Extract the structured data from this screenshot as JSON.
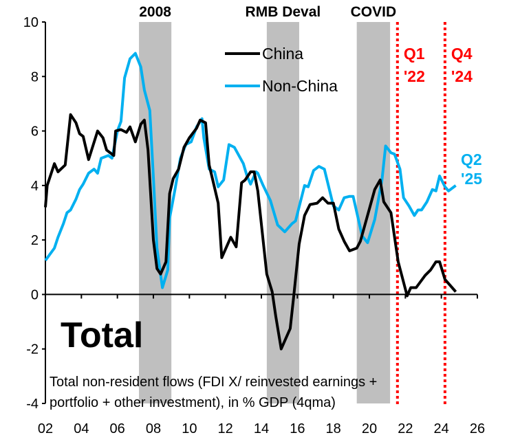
{
  "chart_data": {
    "type": "line",
    "title": "Total",
    "note_lines": [
      "Total non-resident flows (FDI X/ reinvested earnings +",
      "portfolio + other investment), in % GDP (4qma)"
    ],
    "xlabel": "",
    "ylabel": "",
    "xlim": [
      2002,
      2026
    ],
    "ylim": [
      -4,
      10
    ],
    "x_ticks": [
      2002,
      2004,
      2006,
      2008,
      2010,
      2012,
      2014,
      2016,
      2018,
      2020,
      2022,
      2024,
      2026
    ],
    "x_tick_labels": [
      "02",
      "04",
      "06",
      "08",
      "10",
      "12",
      "14",
      "16",
      "18",
      "20",
      "22",
      "24",
      "26"
    ],
    "y_ticks": [
      -4,
      -2,
      0,
      2,
      4,
      6,
      8,
      10
    ],
    "y_tick_labels": [
      "-4",
      "-2",
      "0",
      "2",
      "4",
      "6",
      "8",
      "10"
    ],
    "grid": false,
    "legend": {
      "placement": "top-center"
    },
    "shaded_periods": [
      {
        "label": "2008",
        "start": 2007.2,
        "end": 2009.0
      },
      {
        "label": "RMB Deval",
        "start": 2014.3,
        "end": 2016.1
      },
      {
        "label": "COVID",
        "start": 2019.3,
        "end": 2021.15
      }
    ],
    "markers": [
      {
        "label_line1": "Q1",
        "label_line2": "'22",
        "x": 2021.56
      },
      {
        "label_line1": "Q4",
        "label_line2": "'24",
        "x": 2024.2
      }
    ],
    "end_label": {
      "line1": "Q2",
      "line2": "'25"
    },
    "colors": {
      "china": "#000000",
      "non_china": "#00B0F0",
      "shade": "#BFBFBF",
      "marker": "#FF0000"
    },
    "series": [
      {
        "name": "China",
        "points": [
          [
            2002.0,
            3.2
          ],
          [
            2002.1,
            4.0
          ],
          [
            2002.5,
            4.8
          ],
          [
            2002.7,
            4.5
          ],
          [
            2003.1,
            4.75
          ],
          [
            2003.4,
            6.6
          ],
          [
            2003.7,
            6.3
          ],
          [
            2003.9,
            5.9
          ],
          [
            2004.1,
            5.8
          ],
          [
            2004.4,
            4.95
          ],
          [
            2004.9,
            6.0
          ],
          [
            2005.2,
            5.75
          ],
          [
            2005.4,
            5.3
          ],
          [
            2005.8,
            5.1
          ],
          [
            2005.9,
            6.0
          ],
          [
            2006.2,
            6.05
          ],
          [
            2006.5,
            5.95
          ],
          [
            2006.7,
            6.15
          ],
          [
            2007.0,
            5.6
          ],
          [
            2007.3,
            6.25
          ],
          [
            2007.5,
            6.4
          ],
          [
            2007.7,
            5.3
          ],
          [
            2008.0,
            2.0
          ],
          [
            2008.2,
            0.95
          ],
          [
            2008.4,
            0.75
          ],
          [
            2008.7,
            1.2
          ],
          [
            2008.9,
            3.7
          ],
          [
            2009.1,
            4.25
          ],
          [
            2009.4,
            4.6
          ],
          [
            2009.7,
            5.4
          ],
          [
            2010.0,
            5.75
          ],
          [
            2010.4,
            6.1
          ],
          [
            2010.6,
            6.4
          ],
          [
            2010.9,
            6.3
          ],
          [
            2011.1,
            4.75
          ],
          [
            2011.3,
            4.2
          ],
          [
            2011.6,
            3.35
          ],
          [
            2011.8,
            1.35
          ],
          [
            2012.3,
            2.1
          ],
          [
            2012.6,
            1.75
          ],
          [
            2012.9,
            4.1
          ],
          [
            2013.1,
            4.2
          ],
          [
            2013.4,
            4.5
          ],
          [
            2013.6,
            4.5
          ],
          [
            2013.8,
            3.8
          ],
          [
            2014.3,
            0.75
          ],
          [
            2014.6,
            0.1
          ],
          [
            2014.8,
            -0.8
          ],
          [
            2015.1,
            -2.0
          ],
          [
            2015.6,
            -1.25
          ],
          [
            2015.8,
            -0.05
          ],
          [
            2016.1,
            1.85
          ],
          [
            2016.4,
            2.9
          ],
          [
            2016.7,
            3.3
          ],
          [
            2017.1,
            3.35
          ],
          [
            2017.4,
            3.55
          ],
          [
            2017.7,
            3.35
          ],
          [
            2018.0,
            3.35
          ],
          [
            2018.3,
            2.4
          ],
          [
            2018.6,
            1.95
          ],
          [
            2018.9,
            1.6
          ],
          [
            2019.3,
            1.7
          ],
          [
            2019.5,
            1.95
          ],
          [
            2020.3,
            3.85
          ],
          [
            2020.6,
            4.2
          ],
          [
            2020.8,
            3.4
          ],
          [
            2021.2,
            3.0
          ],
          [
            2021.6,
            1.2
          ],
          [
            2022.1,
            -0.05
          ],
          [
            2022.3,
            0.25
          ],
          [
            2022.6,
            0.25
          ],
          [
            2023.1,
            0.7
          ],
          [
            2023.4,
            0.9
          ],
          [
            2023.7,
            1.2
          ],
          [
            2023.9,
            1.2
          ],
          [
            2024.2,
            0.55
          ],
          [
            2024.8,
            0.1
          ]
        ]
      },
      {
        "name": "Non-China",
        "points": [
          [
            2002.0,
            1.25
          ],
          [
            2002.5,
            1.7
          ],
          [
            2002.7,
            2.1
          ],
          [
            2003.0,
            2.6
          ],
          [
            2003.2,
            3.0
          ],
          [
            2003.4,
            3.1
          ],
          [
            2003.7,
            3.5
          ],
          [
            2003.9,
            3.85
          ],
          [
            2004.1,
            4.05
          ],
          [
            2004.4,
            4.45
          ],
          [
            2004.7,
            4.6
          ],
          [
            2004.9,
            4.45
          ],
          [
            2005.1,
            5.0
          ],
          [
            2005.5,
            5.1
          ],
          [
            2005.7,
            5.0
          ],
          [
            2006.0,
            6.0
          ],
          [
            2006.2,
            6.35
          ],
          [
            2006.4,
            7.95
          ],
          [
            2006.7,
            8.65
          ],
          [
            2007.0,
            8.85
          ],
          [
            2007.3,
            8.35
          ],
          [
            2007.5,
            7.5
          ],
          [
            2007.8,
            6.75
          ],
          [
            2008.0,
            4.3
          ],
          [
            2008.2,
            1.7
          ],
          [
            2008.5,
            0.25
          ],
          [
            2008.8,
            0.9
          ],
          [
            2008.9,
            2.8
          ],
          [
            2009.2,
            3.85
          ],
          [
            2009.5,
            5.0
          ],
          [
            2009.8,
            5.5
          ],
          [
            2010.1,
            5.6
          ],
          [
            2010.4,
            6.15
          ],
          [
            2010.7,
            6.45
          ],
          [
            2010.8,
            5.75
          ],
          [
            2011.1,
            4.6
          ],
          [
            2011.4,
            4.5
          ],
          [
            2011.6,
            3.95
          ],
          [
            2011.9,
            4.2
          ],
          [
            2012.2,
            5.5
          ],
          [
            2012.5,
            5.4
          ],
          [
            2013.0,
            4.8
          ],
          [
            2013.2,
            4.35
          ],
          [
            2013.4,
            4.05
          ],
          [
            2013.7,
            4.5
          ],
          [
            2013.8,
            4.45
          ],
          [
            2014.1,
            4.0
          ],
          [
            2014.5,
            3.45
          ],
          [
            2014.9,
            2.55
          ],
          [
            2015.3,
            2.3
          ],
          [
            2015.7,
            2.6
          ],
          [
            2015.9,
            2.7
          ],
          [
            2016.4,
            4.0
          ],
          [
            2016.6,
            3.95
          ],
          [
            2016.9,
            4.55
          ],
          [
            2017.2,
            4.7
          ],
          [
            2017.5,
            4.6
          ],
          [
            2018.0,
            3.25
          ],
          [
            2018.3,
            3.1
          ],
          [
            2018.6,
            3.55
          ],
          [
            2018.9,
            3.6
          ],
          [
            2019.1,
            3.6
          ],
          [
            2019.6,
            2.15
          ],
          [
            2019.9,
            1.9
          ],
          [
            2020.3,
            2.75
          ],
          [
            2020.7,
            4.2
          ],
          [
            2020.9,
            5.45
          ],
          [
            2021.2,
            5.2
          ],
          [
            2021.4,
            5.15
          ],
          [
            2021.7,
            4.6
          ],
          [
            2021.9,
            3.55
          ],
          [
            2022.2,
            3.25
          ],
          [
            2022.5,
            2.9
          ],
          [
            2022.7,
            3.1
          ],
          [
            2022.9,
            3.1
          ],
          [
            2023.2,
            3.4
          ],
          [
            2023.5,
            3.85
          ],
          [
            2023.7,
            3.8
          ],
          [
            2023.9,
            4.35
          ],
          [
            2024.2,
            3.95
          ],
          [
            2024.4,
            3.8
          ],
          [
            2024.8,
            4.0
          ]
        ]
      }
    ]
  }
}
